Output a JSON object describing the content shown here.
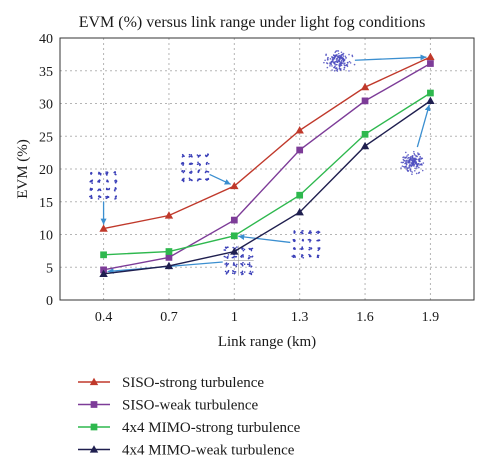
{
  "chart_data": {
    "type": "line",
    "title": "EVM (%) versus link range under light fog conditions",
    "xlabel": "Link range (km)",
    "ylabel": "EVM (%)",
    "x": [
      0.4,
      0.7,
      1,
      1.3,
      1.6,
      1.9
    ],
    "x_tick_labels": [
      "0.4",
      "0.7",
      "1",
      "1.3",
      "1.6",
      "1.9"
    ],
    "xlim": [
      0.2,
      2.1
    ],
    "ylim": [
      0,
      40
    ],
    "y_ticks": [
      0,
      5,
      10,
      15,
      20,
      25,
      30,
      35,
      40
    ],
    "grid": "dotted",
    "legend_position": "below",
    "series": [
      {
        "name": "SISO-strong turbulence",
        "color": "#c0392b",
        "marker": "triangle",
        "values": [
          10.9,
          12.9,
          17.4,
          25.9,
          32.5,
          37.1
        ]
      },
      {
        "name": "SISO-weak turbulence",
        "color": "#7d3c98",
        "marker": "square",
        "values": [
          4.6,
          6.5,
          12.2,
          22.9,
          30.4,
          36.1
        ]
      },
      {
        "name": "4x4 MIMO-strong turbulence",
        "color": "#2eb84e",
        "marker": "square",
        "values": [
          6.9,
          7.4,
          9.8,
          16.0,
          25.3,
          31.6
        ]
      },
      {
        "name": "4x4 MIMO-weak turbulence",
        "color": "#1f1f4f",
        "marker": "triangle",
        "values": [
          4.0,
          5.2,
          7.4,
          13.4,
          23.5,
          30.4
        ]
      }
    ],
    "constellation_insets": [
      {
        "type": "grid",
        "at": [
          0.4,
          17.5
        ],
        "arrow_to": [
          0.4,
          10.9
        ]
      },
      {
        "type": "grid",
        "at": [
          0.82,
          20.2
        ],
        "arrow_to": [
          1.0,
          17.4
        ]
      },
      {
        "type": "grid",
        "at": [
          1.02,
          6.0
        ],
        "arrow_to": [
          0.4,
          4.3
        ],
        "variant": "sparse"
      },
      {
        "type": "grid",
        "at": [
          1.33,
          8.5
        ],
        "arrow_to": [
          1.0,
          9.8
        ]
      },
      {
        "type": "cloud",
        "at": [
          1.48,
          36.5
        ],
        "arrow_to": [
          1.9,
          37.1
        ]
      },
      {
        "type": "cloud",
        "at": [
          1.82,
          21.0
        ],
        "arrow_to": [
          1.9,
          30.4
        ]
      }
    ]
  }
}
